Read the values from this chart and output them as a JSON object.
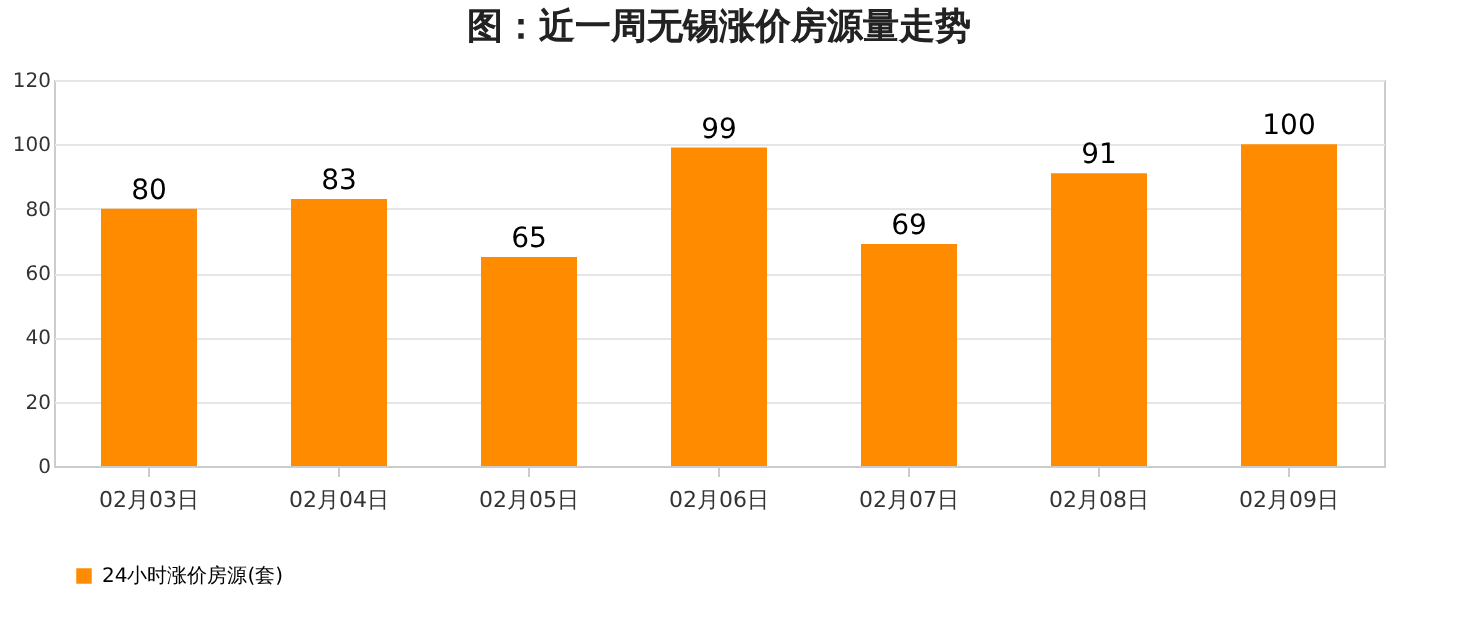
{
  "chart_data": {
    "type": "bar",
    "title": "图：近一周无锡涨价房源量走势",
    "categories": [
      "02月03日",
      "02月04日",
      "02月05日",
      "02月06日",
      "02月07日",
      "02月08日",
      "02月09日"
    ],
    "series": [
      {
        "name": "24小时涨价房源(套)",
        "color": "#ff8c00",
        "values": [
          80,
          83,
          65,
          99,
          69,
          91,
          100
        ]
      }
    ],
    "ylim": [
      0,
      120
    ],
    "yticks": [
      0,
      20,
      40,
      60,
      80,
      100,
      120
    ],
    "grid": "y",
    "legend": "bottom",
    "data_labels": true
  }
}
